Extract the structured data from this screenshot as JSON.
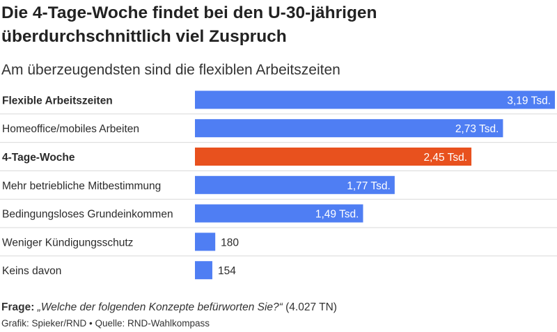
{
  "title_line1": "Die 4-Tage-Woche findet bei den U-30-jährigen",
  "title_line2": "überdurchschnittlich viel Zuspruch",
  "subtitle": "Am überzeugendsten sind die flexiblen Arbeitszeiten",
  "question_label": "Frage:",
  "question_text": "„Welche der folgenden Konzepte befürworten Sie?“",
  "question_n": "(4.027 TN)",
  "credit": "Grafik: Spieker/RND • Quelle: RND-Wahlkompass",
  "colors": {
    "default_bar": "#4f7ef3",
    "highlight_bar": "#e8511e",
    "divider": "#d9d9d9"
  },
  "chart_data": {
    "type": "bar",
    "orientation": "horizontal",
    "categories": [
      "Flexible Arbeitszeiten",
      "Homeoffice/mobiles Arbeiten",
      "4-Tage-Woche",
      "Mehr betriebliche Mitbestimmung",
      "Bedingungsloses Grundeinkommen",
      "Weniger Kündigungsschutz",
      "Keins davon"
    ],
    "values": [
      3190,
      2730,
      2450,
      1770,
      1490,
      180,
      154
    ],
    "value_labels": [
      "3,19 Tsd.",
      "2,73 Tsd.",
      "2,45 Tsd.",
      "1,77 Tsd.",
      "1,49 Tsd.",
      "180",
      "154"
    ],
    "bold_categories": [
      "Flexible Arbeitszeiten",
      "4-Tage-Woche"
    ],
    "highlight": "4-Tage-Woche",
    "xlim": [
      0,
      3190
    ],
    "grid": false,
    "legend": "none"
  }
}
